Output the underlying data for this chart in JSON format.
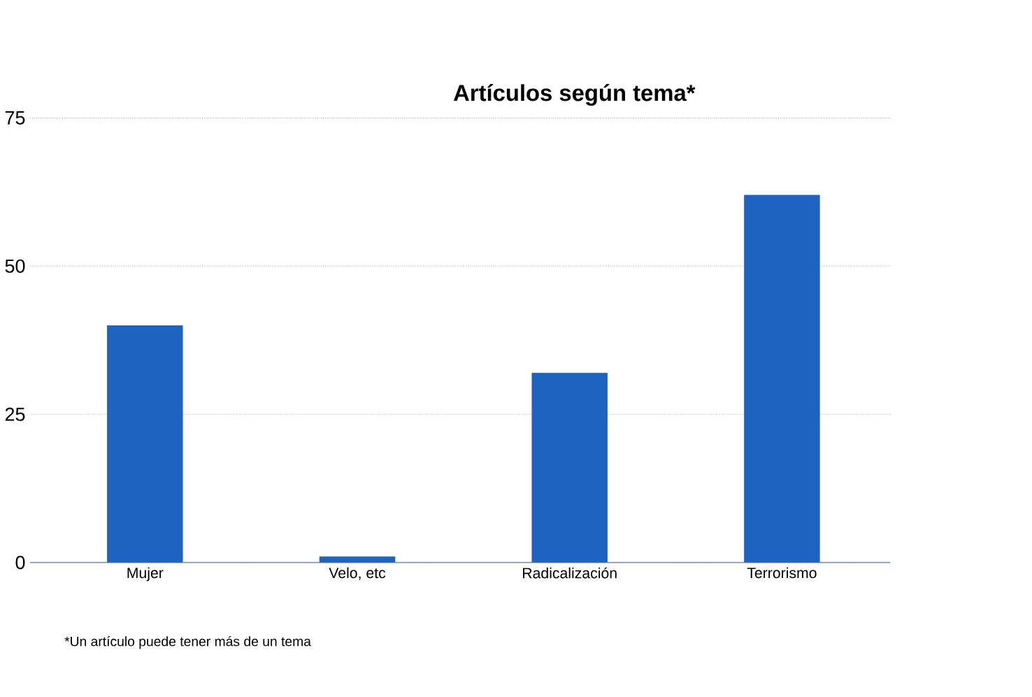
{
  "chart_data": {
    "type": "bar",
    "title": "Artículos según tema*",
    "categories": [
      "Mujer",
      "Velo, etc",
      "Radicalización",
      "Terrorismo"
    ],
    "values": [
      40,
      1,
      32,
      62
    ],
    "color": "#1f63c0",
    "ylim": [
      0,
      75
    ],
    "yticks": [
      0,
      25,
      50,
      75
    ],
    "grid": "y",
    "annotations": [
      "*Un artículo puede tener más de un tema"
    ]
  }
}
